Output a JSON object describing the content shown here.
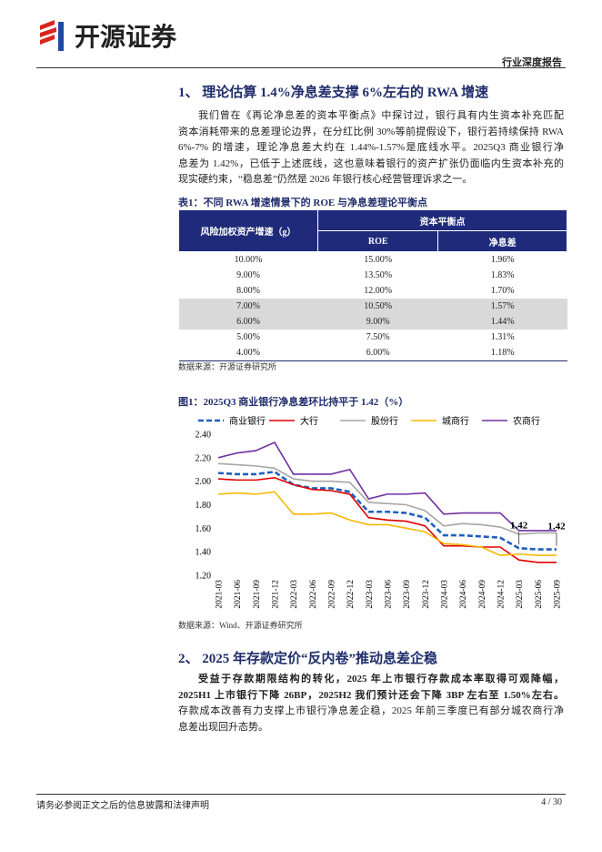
{
  "header": {
    "logo_text": "开源证券",
    "report_type": "行业深度报告"
  },
  "section1": {
    "heading": "1、 理论估算 1.4%净息差支撑 6%左右的 RWA 增速",
    "lines": [
      "我们曾在《再论净息差的资本平衡点》中探讨过，银行具有内生资本补充匹配",
      "资本消耗带来的息差理论边界，在分红比例 30%等前提假设下，银行若持续保持 RWA",
      "6%-7% 的增速，理论净息差大约在 1.44%-1.57%是底线水平。2025Q3 商业银行净",
      "息差为 1.42%，已低于上述底线，这也意味着银行的资产扩张仍面临内生资本补充的",
      "现实硬约束，“稳息差”仍然是 2026 年银行核心经营管理诉求之一。"
    ]
  },
  "table": {
    "caption": "表1：不同 RWA 增速情景下的 ROE 与净息差理论平衡点",
    "header": [
      "风险加权资产增速（g）",
      "资本平衡点",
      "ROE",
      "净息差"
    ],
    "rows": [
      [
        "10.00%",
        "15.00%",
        "1.96%"
      ],
      [
        "9.00%",
        "13.50%",
        "1.83%"
      ],
      [
        "8.00%",
        "12.00%",
        "1.70%"
      ],
      [
        "7.00%",
        "10.50%",
        "1.57%"
      ],
      [
        "6.00%",
        "9.00%",
        "1.44%"
      ],
      [
        "5.00%",
        "7.50%",
        "1.31%"
      ],
      [
        "4.00%",
        "6.00%",
        "1.18%"
      ]
    ],
    "source": "数据来源：开源证券研究所"
  },
  "chart_data": {
    "type": "line",
    "title": "图1：2025Q3 商业银行净息差环比持平于 1.42（%）",
    "categories": [
      "2021-03",
      "2021-06",
      "2021-09",
      "2021-12",
      "2022-03",
      "2022-06",
      "2022-09",
      "2022-12",
      "2023-03",
      "2023-06",
      "2023-09",
      "2023-12",
      "2024-03",
      "2024-06",
      "2024-09",
      "2024-12",
      "2025-03",
      "2025-06",
      "2025-09"
    ],
    "series": [
      {
        "name": "商业银行",
        "color": "#1f5fbf",
        "dashed": true,
        "values": [
          2.07,
          2.06,
          2.06,
          2.08,
          1.97,
          1.94,
          1.94,
          1.91,
          1.74,
          1.74,
          1.73,
          1.69,
          1.54,
          1.54,
          1.53,
          1.52,
          1.43,
          1.42,
          1.42
        ]
      },
      {
        "name": "大行",
        "color": "#e00000",
        "values": [
          2.02,
          2.01,
          2.01,
          2.03,
          1.97,
          1.93,
          1.92,
          1.89,
          1.69,
          1.67,
          1.66,
          1.62,
          1.45,
          1.45,
          1.44,
          1.44,
          1.33,
          1.31,
          1.31
        ]
      },
      {
        "name": "股份行",
        "color": "#a6a6a6",
        "values": [
          2.15,
          2.14,
          2.13,
          2.11,
          2.02,
          2.0,
          2.0,
          1.99,
          1.82,
          1.81,
          1.8,
          1.75,
          1.62,
          1.64,
          1.63,
          1.61,
          1.55,
          1.56,
          1.56
        ]
      },
      {
        "name": "城商行",
        "color": "#f5b800",
        "values": [
          1.89,
          1.9,
          1.89,
          1.91,
          1.72,
          1.72,
          1.73,
          1.67,
          1.63,
          1.63,
          1.6,
          1.57,
          1.47,
          1.46,
          1.44,
          1.37,
          1.38,
          1.37,
          1.37
        ]
      },
      {
        "name": "农商行",
        "color": "#7030a0",
        "values": [
          2.2,
          2.24,
          2.26,
          2.33,
          2.06,
          2.06,
          2.06,
          2.1,
          1.85,
          1.89,
          1.89,
          1.9,
          1.72,
          1.73,
          1.73,
          1.73,
          1.58,
          1.58,
          1.58
        ]
      }
    ],
    "annotations": [
      "1.42",
      "1.42"
    ],
    "ylim": [
      1.2,
      2.4
    ],
    "yticks": [
      {
        "value": 1.2,
        "label": "1.20"
      },
      {
        "value": 1.4,
        "label": "1.40"
      },
      {
        "value": 1.6,
        "label": "1.60"
      },
      {
        "value": 1.8,
        "label": "1.80"
      },
      {
        "value": 2.0,
        "label": "2.00"
      },
      {
        "value": 2.2,
        "label": "2.20"
      },
      {
        "value": 2.4,
        "label": "2.40"
      }
    ],
    "grid": false,
    "legend": "top",
    "source": "数据来源：Wind、开源证券研究所"
  },
  "section2": {
    "heading": "2、 2025 年存款定价“反内卷”推动息差企稳",
    "bold_lines": [
      "受益于存款期限结构的转化，2025 年上市银行存款成本率取得可观降幅，",
      "2025H1 上市银行下降 26BP，2025H2 我们预计还会下降 3BP 左右至 1.50%左右。"
    ],
    "lines": [
      "存款成本改善有力支撑上市银行净息差企稳，2025 年前三季度已有部分城农商行净",
      "息差出现回升态势。"
    ]
  },
  "footer": {
    "disclaimer": "请务必参阅正文之后的信息披露和法律声明",
    "page": "4 / 30"
  }
}
